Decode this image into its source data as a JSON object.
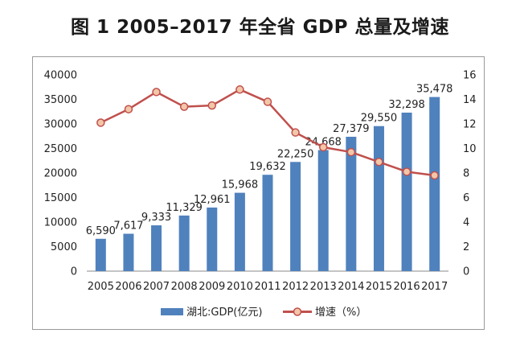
{
  "chart_data": {
    "type": "bar",
    "title": "图 1  2005–2017 年全省 GDP 总量及增速",
    "categories": [
      "2005",
      "2006",
      "2007",
      "2008",
      "2009",
      "2010",
      "2011",
      "2012",
      "2013",
      "2014",
      "2015",
      "2016",
      "2017"
    ],
    "series": [
      {
        "name": "湖北:GDP(亿元)",
        "type": "bar",
        "axis": "left",
        "color": "#4f81bd",
        "values": [
          6590,
          7617,
          9333,
          11329,
          12961,
          15968,
          19632,
          22250,
          24668,
          27379,
          29550,
          32298,
          35478
        ],
        "labels": [
          "6,590",
          "7,617",
          "9,333",
          "11,329",
          "12,961",
          "15,968",
          "19,632",
          "22,250",
          "24,668",
          "27,379",
          "29,550",
          "32,298",
          "35,478"
        ]
      },
      {
        "name": "增速（%）",
        "type": "line",
        "axis": "right",
        "color": "#c0504d",
        "marker_fill": "#f2c6a8",
        "values": [
          12.1,
          13.2,
          14.6,
          13.4,
          13.5,
          14.8,
          13.8,
          11.3,
          10.1,
          9.7,
          8.9,
          8.1,
          7.8
        ]
      }
    ],
    "ylim": [
      0,
      40000
    ],
    "yticks": [
      "0",
      "5000",
      "10000",
      "15000",
      "20000",
      "25000",
      "30000",
      "35000",
      "40000"
    ],
    "y2lim": [
      0,
      16
    ],
    "y2ticks": [
      "0",
      "2",
      "4",
      "6",
      "8",
      "10",
      "12",
      "14",
      "16"
    ],
    "legend_position": "bottom",
    "grid": false
  }
}
